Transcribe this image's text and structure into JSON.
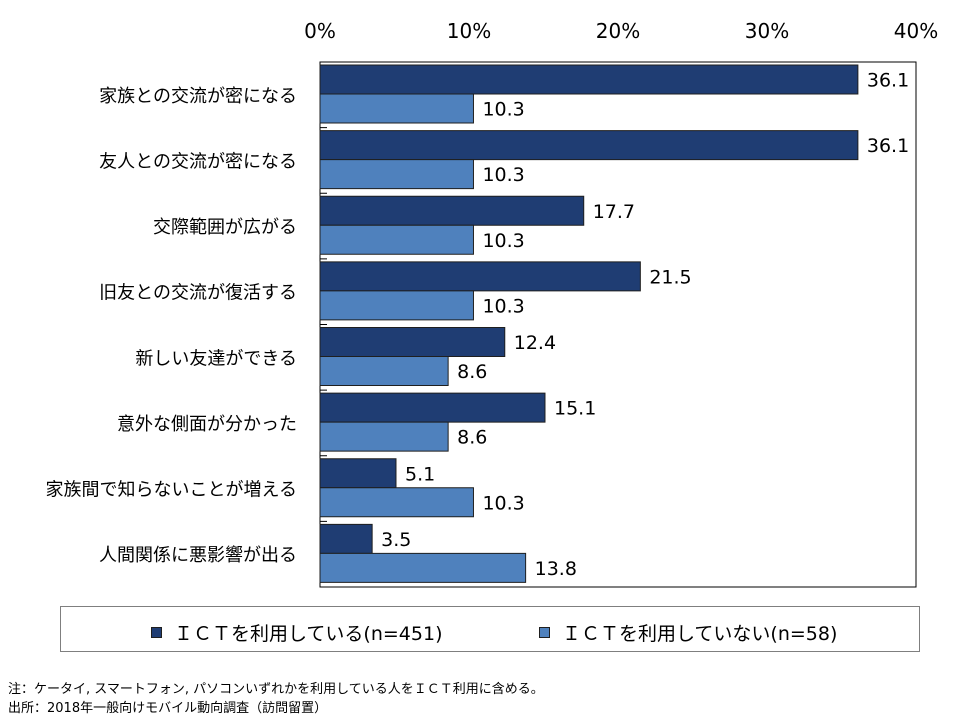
{
  "chart_data": {
    "type": "bar",
    "orientation": "horizontal",
    "categories": [
      "家族との交流が密になる",
      "友人との交流が密になる",
      "交際範囲が広がる",
      "旧友との交流が復活する",
      "新しい友達ができる",
      "意外な側面が分かった",
      "家族間で知らないことが増える",
      "人間関係に悪影響が出る"
    ],
    "series": [
      {
        "name": "ＩＣＴを利用している(n=451)",
        "color": "#1f3d73",
        "values": [
          36.1,
          36.1,
          17.7,
          21.5,
          12.4,
          15.1,
          5.1,
          3.5
        ]
      },
      {
        "name": "ＩＣＴを利用していない(n=58)",
        "color": "#4f81bd",
        "values": [
          10.3,
          10.3,
          10.3,
          10.3,
          8.6,
          8.6,
          10.3,
          13.8
        ]
      }
    ],
    "xlim": [
      0,
      40
    ],
    "xticks": [
      "0%",
      "10%",
      "20%",
      "30%",
      "40%"
    ],
    "axis_position": "top",
    "grid": false,
    "legend_position": "bottom"
  },
  "notes": {
    "note": "注：ケータイ, スマートフォン, パソコンいずれかを利用している人をＩＣＴ利用に含める。",
    "source": "出所：2018年一般向けモバイル動向調査（訪問留置）"
  }
}
